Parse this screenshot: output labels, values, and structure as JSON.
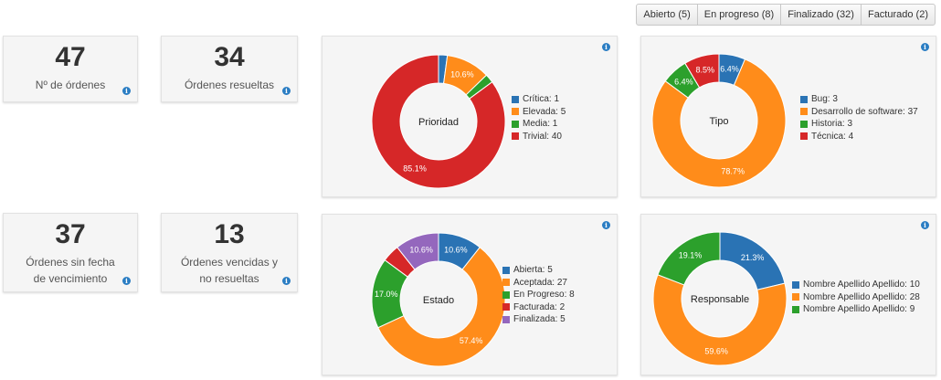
{
  "filters": [
    {
      "label": "Abierto (5)"
    },
    {
      "label": "En progreso (8)"
    },
    {
      "label": "Finalizado (32)"
    },
    {
      "label": "Facturado (2)"
    }
  ],
  "stats": [
    {
      "value": "47",
      "label": "Nº de órdenes"
    },
    {
      "value": "34",
      "label": "Órdenes resueltas"
    },
    {
      "value": "37",
      "label": "Órdenes sin fecha de vencimiento"
    },
    {
      "value": "13",
      "label": "Órdenes vencidas y no resueltas"
    }
  ],
  "colors": {
    "blue": "#2a73b4",
    "orange": "#ff8c1a",
    "green": "#2ca02c",
    "red": "#d62728",
    "purple": "#9467bd",
    "info": "#2a7dc3"
  },
  "chart_data": [
    {
      "type": "pie",
      "title": "Prioridad",
      "categories": [
        "Crítica",
        "Elevada",
        "Media",
        "Trivial"
      ],
      "values": [
        1,
        5,
        1,
        40
      ],
      "colors": [
        "#2a73b4",
        "#ff8c1a",
        "#2ca02c",
        "#d62728"
      ],
      "legend": [
        "Crítica: 1",
        "Elevada: 5",
        "Media: 1",
        "Trivial: 40"
      ],
      "slice_labels": [
        "",
        "10.6%",
        "",
        "85.1%"
      ]
    },
    {
      "type": "pie",
      "title": "Tipo",
      "categories": [
        "Bug",
        "Desarrollo de software",
        "Historia",
        "Técnica"
      ],
      "values": [
        3,
        37,
        3,
        4
      ],
      "colors": [
        "#2a73b4",
        "#ff8c1a",
        "#2ca02c",
        "#d62728"
      ],
      "legend": [
        "Bug: 3",
        "Desarrollo de software: 37",
        "Historia: 3",
        "Técnica: 4"
      ],
      "slice_labels": [
        "6.4%",
        "78.7%",
        "6.4%",
        "8.5%"
      ]
    },
    {
      "type": "pie",
      "title": "Estado",
      "categories": [
        "Abierta",
        "Aceptada",
        "En Progreso",
        "Facturada",
        "Finalizada"
      ],
      "values": [
        5,
        27,
        8,
        2,
        5
      ],
      "colors": [
        "#2a73b4",
        "#ff8c1a",
        "#2ca02c",
        "#d62728",
        "#9467bd"
      ],
      "legend": [
        "Abierta: 5",
        "Aceptada: 27",
        "En Progreso: 8",
        "Facturada: 2",
        "Finalizada: 5"
      ],
      "slice_labels": [
        "10.6%",
        "57.4%",
        "17.0%",
        "",
        "10.6%"
      ]
    },
    {
      "type": "pie",
      "title": "Responsable",
      "categories": [
        "Nombre Apellido Apellido",
        "Nombre Apellido Apellido",
        "Nombre Apellido Apellido"
      ],
      "values": [
        10,
        28,
        9
      ],
      "colors": [
        "#2a73b4",
        "#ff8c1a",
        "#2ca02c"
      ],
      "legend": [
        "Nombre Apellido Apellido: 10",
        "Nombre Apellido Apellido: 28",
        "Nombre Apellido Apellido: 9"
      ],
      "slice_labels": [
        "21.3%",
        "59.6%",
        "19.1%"
      ]
    }
  ]
}
